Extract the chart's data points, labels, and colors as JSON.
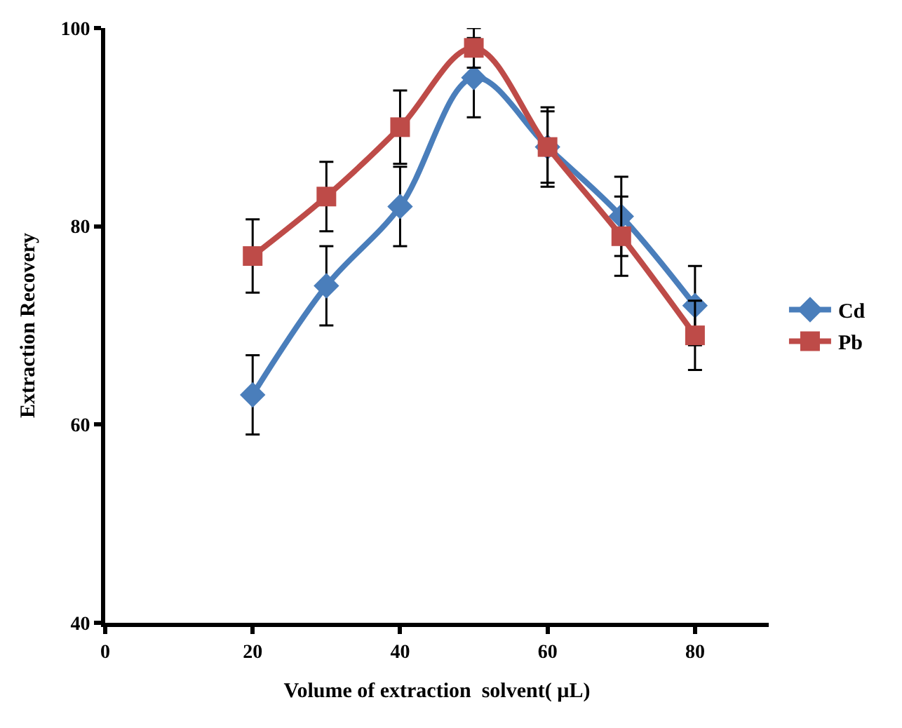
{
  "chart_data": {
    "type": "line",
    "xlabel": "Volume of extraction  solvent( µL)",
    "ylabel": "Extraction Recovery",
    "x": [
      20,
      30,
      40,
      50,
      60,
      70,
      80
    ],
    "series": [
      {
        "name": "Cd",
        "color": "#4a7ebb",
        "marker": "diamond",
        "values": [
          63,
          74,
          82,
          95,
          88,
          81,
          72
        ],
        "errors": [
          4,
          4,
          4,
          4,
          4,
          4,
          4
        ]
      },
      {
        "name": "Pb",
        "color": "#be4b48",
        "marker": "square",
        "values": [
          77,
          83,
          90,
          98,
          88,
          79,
          69
        ],
        "errors": [
          3.7,
          3.5,
          3.7,
          2,
          3.6,
          4,
          3.5
        ]
      }
    ],
    "xlim": [
      0,
      90
    ],
    "xticks": [
      0,
      20,
      40,
      60,
      80
    ],
    "ylim": [
      40,
      100
    ],
    "yticks": [
      40,
      60,
      80,
      100
    ],
    "legend": "right"
  }
}
